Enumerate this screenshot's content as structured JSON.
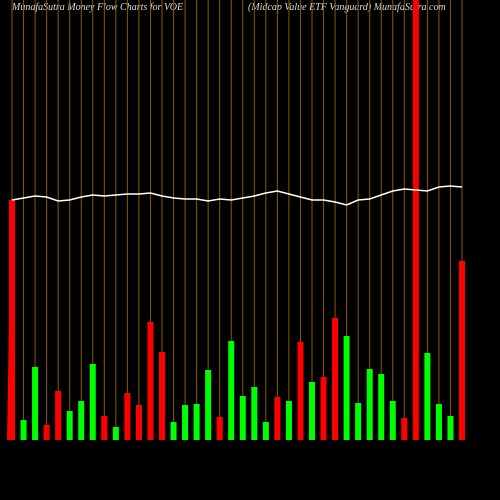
{
  "chart_data": {
    "type": "bar",
    "title": "MunafaSutra  Money Flow  Charts for VOE",
    "subtitle": "(Midcap Value  ETF Vanguard) MunafaSutra.com",
    "ylim": [
      0,
      440
    ],
    "series": [
      {
        "name": "flow",
        "colors": [
          "#f00",
          "#0f0",
          "#0f0",
          "#f00",
          "#f00",
          "#0f0",
          "#0f0",
          "#0f0",
          "#f00",
          "#0f0",
          "#f00",
          "#f00",
          "#f00",
          "#f00",
          "#0f0",
          "#0f0",
          "#0f0",
          "#0f0",
          "#f00",
          "#0f0",
          "#0f0",
          "#0f0",
          "#0f0",
          "#f00",
          "#0f0",
          "#f00",
          "#0f0",
          "#f00",
          "#f00",
          "#0f0",
          "#0f0",
          "#0f0",
          "#0f0",
          "#0f0",
          "#f00",
          "#f00",
          "#0f0",
          "#0f0",
          "#0f0",
          "#f00"
        ],
        "values": [
          240,
          20,
          73,
          15,
          49,
          29,
          39,
          76,
          24,
          13,
          47,
          35,
          118,
          88,
          18,
          35,
          36,
          70,
          23,
          99,
          44,
          53,
          18,
          43,
          39,
          98,
          58,
          63,
          122,
          104,
          37,
          71,
          66,
          39,
          22,
          440,
          87,
          36,
          24,
          179
        ]
      },
      {
        "name": "price",
        "color": "#fff",
        "values": [
          240,
          242,
          244,
          243,
          239,
          240,
          243,
          245,
          244,
          245,
          246,
          246,
          247,
          244,
          242,
          241,
          241,
          239,
          241,
          240,
          242,
          244,
          247,
          249,
          246,
          243,
          240,
          240,
          238,
          235,
          240,
          241,
          245,
          249,
          251,
          250,
          249,
          253,
          254,
          253
        ]
      }
    ]
  }
}
